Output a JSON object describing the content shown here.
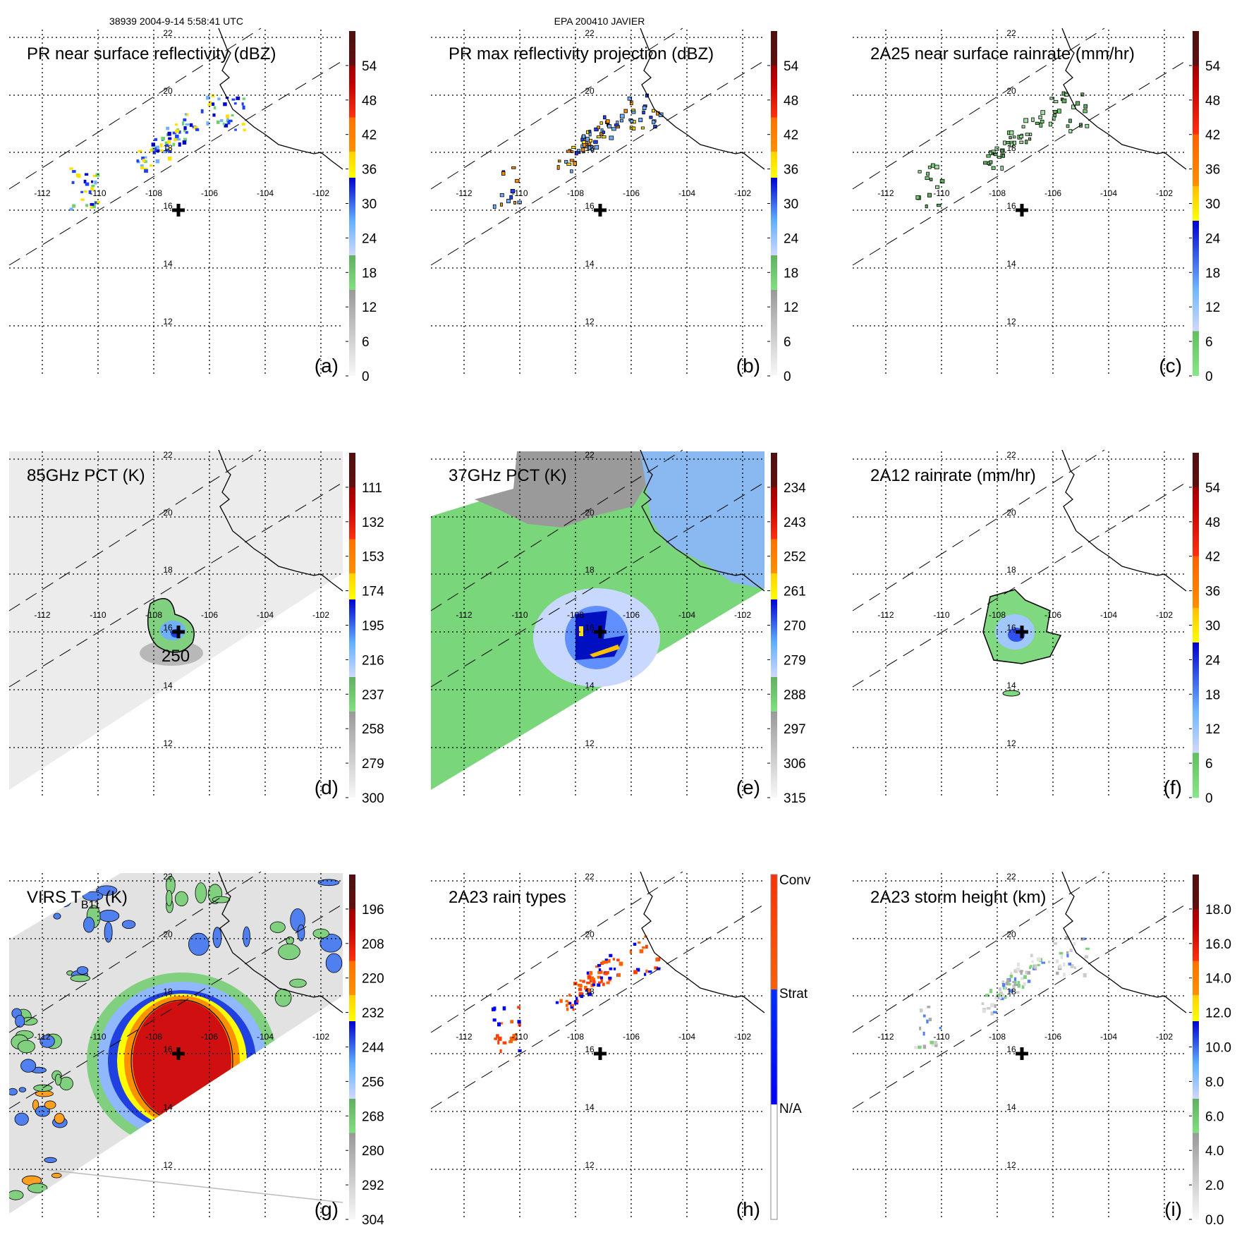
{
  "header": {
    "left": "38939 2004-9-14 5:58:41 UTC",
    "center": "EPA 200410 JAVIER"
  },
  "map": {
    "lat_labels": [
      "22",
      "20",
      "18",
      "16",
      "14",
      "12"
    ],
    "lon_labels": [
      "-112",
      "-110",
      "-108",
      "-106",
      "-104",
      "-102"
    ]
  },
  "contour_label": "250",
  "schemes": {
    "A": [
      [
        0,
        "#f8f8f8"
      ],
      [
        0.25,
        "#999999"
      ],
      [
        0.25,
        "#80e080"
      ],
      [
        0.35,
        "#60b060"
      ],
      [
        0.35,
        "#d0d8ff"
      ],
      [
        0.45,
        "#60b0ff"
      ],
      [
        0.575,
        "#0000d0"
      ],
      [
        0.575,
        "#ffff00"
      ],
      [
        0.65,
        "#ffd000"
      ],
      [
        0.65,
        "#ff9000"
      ],
      [
        0.75,
        "#ff7000"
      ],
      [
        0.75,
        "#ff3010"
      ],
      [
        0.85,
        "#c00000"
      ],
      [
        0.9,
        "#a00000"
      ],
      [
        0.9,
        "#601010"
      ],
      [
        1,
        "#501010"
      ]
    ],
    "C": [
      [
        0,
        "#88e888"
      ],
      [
        0.13,
        "#60c060"
      ],
      [
        0.13,
        "#d0d8ff"
      ],
      [
        0.25,
        "#70b8ff"
      ],
      [
        0.45,
        "#0000d0"
      ],
      [
        0.45,
        "#ffff00"
      ],
      [
        0.55,
        "#ffc000"
      ],
      [
        0.55,
        "#ff9000"
      ],
      [
        0.7,
        "#ff6000"
      ],
      [
        0.7,
        "#ff3010"
      ],
      [
        0.85,
        "#c00000"
      ],
      [
        0.9,
        "#a00000"
      ],
      [
        0.9,
        "#601010"
      ],
      [
        1,
        "#501010"
      ]
    ],
    "H": [
      [
        0,
        "#ffffff"
      ],
      [
        0.333,
        "#ffffff"
      ],
      [
        0.333,
        "#0000ff"
      ],
      [
        0.667,
        "#0030ff"
      ],
      [
        0.667,
        "#ff6000"
      ],
      [
        1,
        "#ff3000"
      ]
    ]
  },
  "chart_data": [
    {
      "type": "heatmap",
      "panel": "a",
      "title": "PR near surface reflectivity (dBZ)",
      "letter": "(a)",
      "scheme": "A",
      "colorbar_labels": [
        "0",
        "6",
        "12",
        "18",
        "24",
        "30",
        "36",
        "42",
        "48",
        "54"
      ]
    },
    {
      "type": "heatmap",
      "panel": "b",
      "title": "PR max reflectivity projection (dBZ)",
      "letter": "(b)",
      "scheme": "A",
      "colorbar_labels": [
        "0",
        "6",
        "12",
        "18",
        "24",
        "30",
        "36",
        "42",
        "48",
        "54"
      ]
    },
    {
      "type": "heatmap",
      "panel": "c",
      "title": "2A25 near surface rainrate (mm/hr)",
      "letter": "(c)",
      "scheme": "C",
      "colorbar_labels": [
        "0",
        "6",
        "12",
        "18",
        "24",
        "30",
        "36",
        "42",
        "48",
        "54"
      ]
    },
    {
      "type": "heatmap",
      "panel": "d",
      "title": "85GHz PCT (K)",
      "letter": "(d)",
      "scheme": "A",
      "colorbar_labels": [
        "300",
        "279",
        "258",
        "237",
        "216",
        "195",
        "174",
        "153",
        "132",
        "111"
      ]
    },
    {
      "type": "heatmap",
      "panel": "e",
      "title": "37GHz PCT (K)",
      "letter": "(e)",
      "scheme": "A",
      "colorbar_labels": [
        "315",
        "306",
        "297",
        "288",
        "279",
        "270",
        "261",
        "252",
        "243",
        "234"
      ]
    },
    {
      "type": "heatmap",
      "panel": "f",
      "title": "2A12 rainrate (mm/hr)",
      "letter": "(f)",
      "scheme": "C",
      "colorbar_labels": [
        "0",
        "6",
        "12",
        "18",
        "24",
        "30",
        "36",
        "42",
        "48",
        "54"
      ]
    },
    {
      "type": "heatmap",
      "panel": "g",
      "title": "VIRS T",
      "title_sub": "B11",
      "title_suffix": " (K)",
      "letter": "(g)",
      "scheme": "A",
      "colorbar_labels": [
        "304",
        "292",
        "280",
        "268",
        "256",
        "244",
        "232",
        "220",
        "208",
        "196"
      ]
    },
    {
      "type": "heatmap",
      "panel": "h",
      "title": "2A23 rain types",
      "letter": "(h)",
      "scheme": "H",
      "colorbar_labels": [
        "N/A",
        "Strat",
        "Conv"
      ]
    },
    {
      "type": "heatmap",
      "panel": "i",
      "title": "2A23 storm height (km)",
      "letter": "(i)",
      "scheme": "A",
      "colorbar_labels": [
        "0.0",
        "2.0",
        "4.0",
        "6.0",
        "8.0",
        "10.0",
        "12.0",
        "14.0",
        "16.0",
        "18.0"
      ]
    }
  ]
}
